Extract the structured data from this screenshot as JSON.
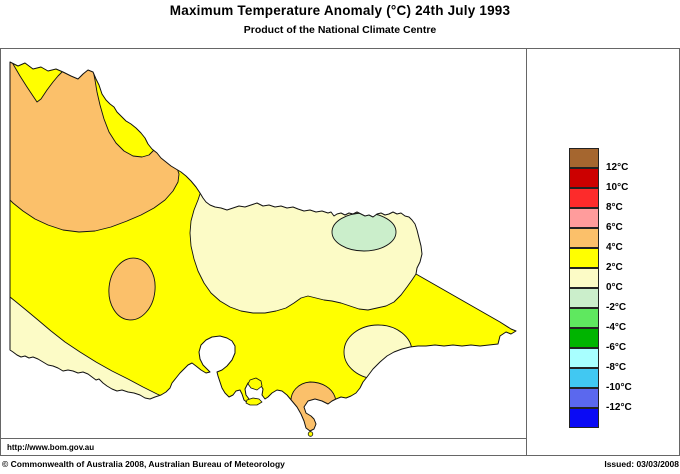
{
  "header": {
    "title": "Maximum Temperature Anomaly (°C)  24th July 1993",
    "subtitle": "Product of the National Climate Centre"
  },
  "footer": {
    "url": "http://www.bom.gov.au",
    "copyright": "© Commonwealth of Australia 2008, Australian Bureau of Meteorology",
    "issued": "Issued: 03/03/2008"
  },
  "palette": {
    "brown": "#A5662F",
    "dark_red": "#CC0000",
    "red": "#FD2B2B",
    "pink": "#FF9C9C",
    "orange": "#FBC06A",
    "yellow": "#FFFF00",
    "cream": "#FCFBC6",
    "pale_green": "#CBEECB",
    "light_green": "#5FE85F",
    "green": "#00B400",
    "pale_cyan": "#A8FFFF",
    "cyan": "#41C8F2",
    "blue_purple": "#5B68EE",
    "blue": "#0A0AF5"
  },
  "legend": {
    "order": [
      "brown",
      "dark_red",
      "red",
      "pink",
      "orange",
      "yellow",
      "cream",
      "pale_green",
      "light_green",
      "green",
      "pale_cyan",
      "cyan",
      "blue_purple",
      "blue"
    ],
    "boundary_labels": [
      "12°C",
      "10°C",
      "8°C",
      "6°C",
      "4°C",
      "2°C",
      "0°C",
      "-2°C",
      "-4°C",
      "-6°C",
      "-8°C",
      "-10°C",
      "-12°C"
    ]
  },
  "map": {
    "region_outline": "Victoria, Australia",
    "anomaly_regions": [
      {
        "name": "northwest-mallee",
        "range_c": "4 to 6",
        "color_key": "orange"
      },
      {
        "name": "statewide-base",
        "range_c": "2 to 4",
        "color_key": "yellow"
      },
      {
        "name": "central-north-band",
        "range_c": "0 to 2",
        "color_key": "cream"
      },
      {
        "name": "northeast-pocket",
        "range_c": "-2 to 0",
        "color_key": "pale_green"
      },
      {
        "name": "central-west-pocket",
        "range_c": "4 to 6",
        "color_key": "orange"
      },
      {
        "name": "southwest-coast",
        "range_c": "0 to 2",
        "color_key": "cream"
      },
      {
        "name": "south-gippsland",
        "range_c": "4 to 6",
        "color_key": "orange"
      },
      {
        "name": "gippsland-pocket",
        "range_c": "0 to 2",
        "color_key": "cream"
      }
    ]
  }
}
